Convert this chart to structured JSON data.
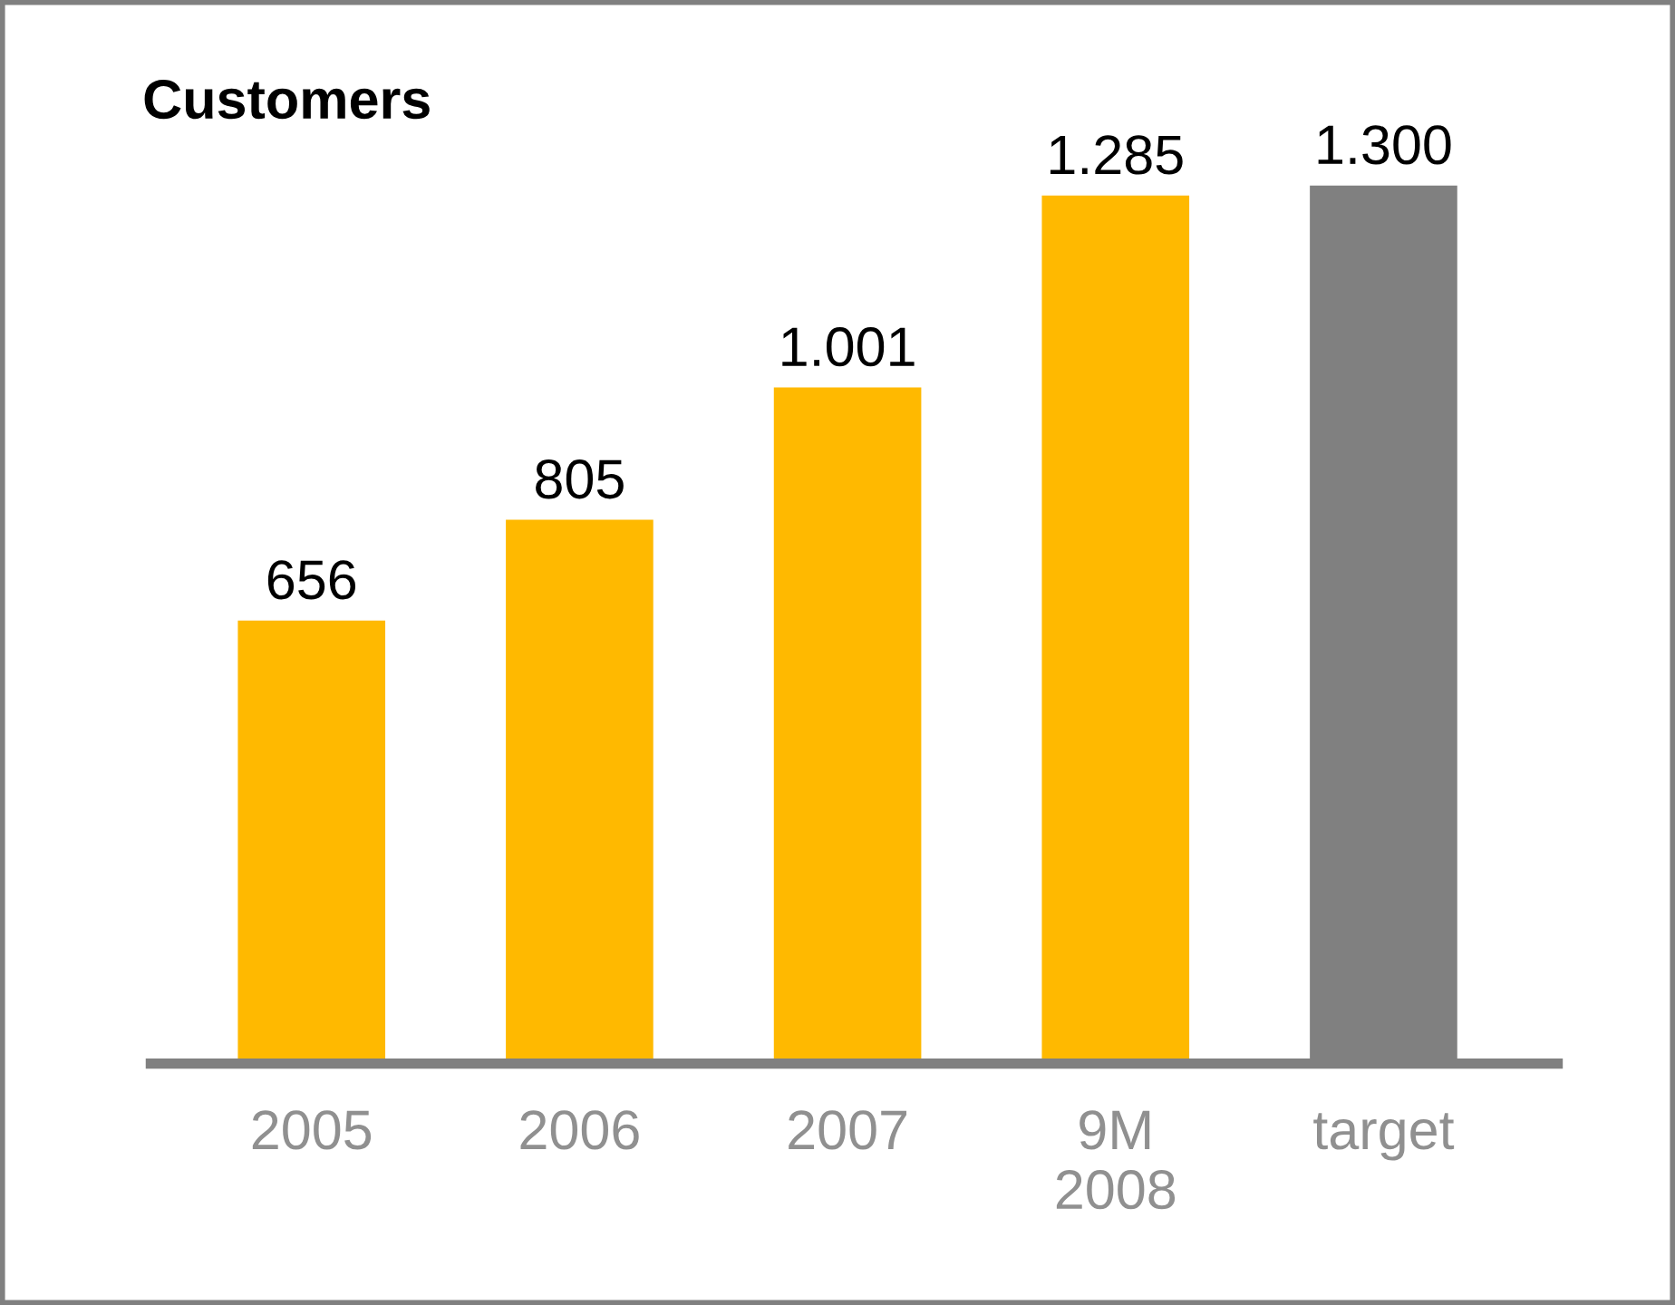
{
  "chart_data": {
    "type": "bar",
    "title": "Customers",
    "categories": [
      "2005",
      "2006",
      "2007",
      "9M\n2008",
      "target"
    ],
    "values": [
      656,
      805,
      1001,
      1285,
      1300
    ],
    "colors": [
      "#ffb900",
      "#ffb900",
      "#ffb900",
      "#ffb900",
      "#808080"
    ],
    "value_labels": [
      "656",
      "805",
      "1.001",
      "1.285",
      "1.300"
    ],
    "grid": false,
    "legend": false
  }
}
